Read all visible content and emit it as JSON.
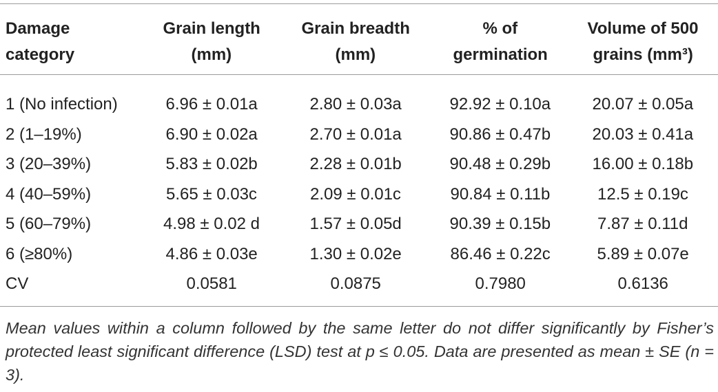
{
  "table": {
    "headers": [
      [
        "Damage",
        "category"
      ],
      [
        "Grain length",
        "(mm)"
      ],
      [
        "Grain breadth",
        "(mm)"
      ],
      [
        "% of",
        "germination"
      ],
      [
        "Volume of 500",
        "grains (mm³)"
      ]
    ],
    "rows": [
      [
        "1 (No infection)",
        "6.96 ± 0.01a",
        "2.80 ± 0.03a",
        "92.92 ± 0.10a",
        "20.07 ± 0.05a"
      ],
      [
        "2 (1–19%)",
        "6.90 ± 0.02a",
        "2.70 ± 0.01a",
        "90.86 ± 0.47b",
        "20.03 ± 0.41a"
      ],
      [
        "3 (20–39%)",
        "5.83 ± 0.02b",
        "2.28 ± 0.01b",
        "90.48 ± 0.29b",
        "16.00 ± 0.18b"
      ],
      [
        "4 (40–59%)",
        "5.65 ± 0.03c",
        "2.09 ± 0.01c",
        "90.84 ± 0.11b",
        "12.5 ± 0.19c"
      ],
      [
        "5 (60–79%)",
        "4.98 ± 0.02 d",
        "1.57 ± 0.05d",
        "90.39 ± 0.15b",
        "7.87 ± 0.11d"
      ],
      [
        "6 (≥80%)",
        "4.86 ± 0.03e",
        "1.30 ± 0.02e",
        "86.46 ± 0.22c",
        "5.89 ± 0.07e"
      ],
      [
        "CV",
        "0.0581",
        "0.0875",
        "0.7980",
        "0.6136"
      ]
    ],
    "footnote": "Mean values within a column followed by the same letter do not differ significantly by Fisher’s protected least significant difference (LSD) test at p ≤ 0.05. Data are presented as mean ± SE (n = 3)."
  }
}
